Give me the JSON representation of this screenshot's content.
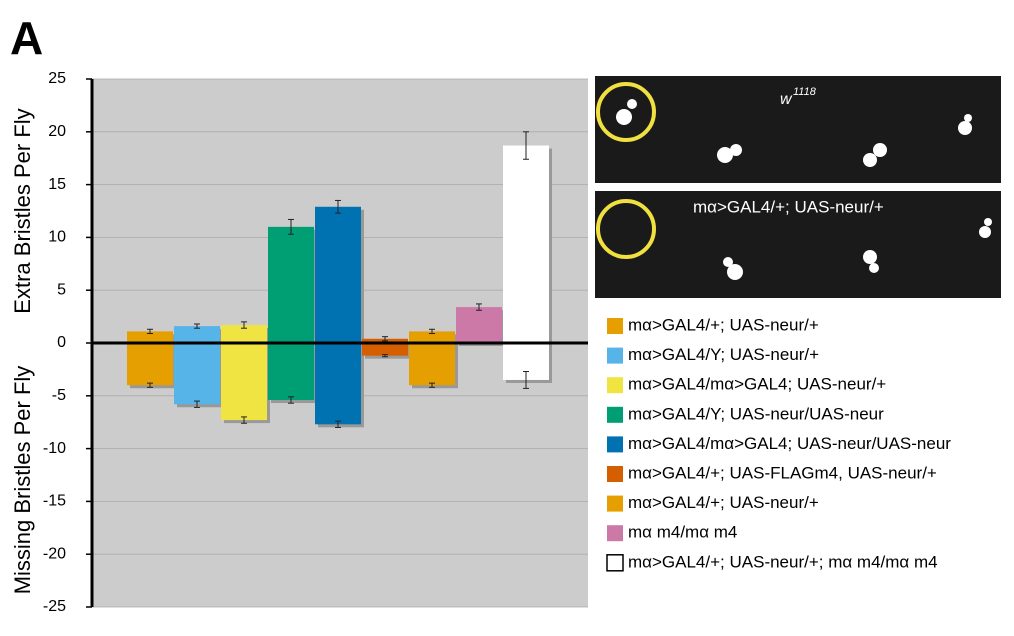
{
  "chart_data": {
    "type": "bar",
    "panel_label": "A",
    "ylabels": [
      "Extra Bristles Per Fly",
      "Missing Bristles Per Fly"
    ],
    "categories": [
      "mα>GAL4/+; UAS-neur/+",
      "mα>GAL4/Y; UAS-neur/+",
      "mα>GAL4/mα>GAL4; UAS-neur/+",
      "mα>GAL4/Y; UAS-neur/UAS-neur",
      "mα>GAL4/mα>GAL4; UAS-neur/UAS-neur",
      "mα>GAL4/+; UAS-FLAGm4, UAS-neur/+",
      "mα>GAL4/+; UAS-neur/+",
      "mα m4/mα m4",
      "mα>GAL4/+; UAS-neur/+; mα m4/mα m4"
    ],
    "colors": [
      "#e69f00",
      "#56b4e9",
      "#f0e442",
      "#009e73",
      "#0072b2",
      "#d55e00",
      "#e69f00",
      "#cc79a7",
      "#ffffff"
    ],
    "series": [
      {
        "values": [
          1.1,
          1.6,
          1.7,
          11.0,
          12.9,
          0.4,
          1.1,
          3.4,
          18.7
        ],
        "errors": [
          0.2,
          0.2,
          0.3,
          0.7,
          0.6,
          0.2,
          0.2,
          0.3,
          1.3
        ]
      },
      {
        "values": [
          -4.0,
          -5.8,
          -7.3,
          -5.4,
          -7.7,
          -1.2,
          -4.0,
          0,
          -3.5
        ],
        "errors": [
          0.2,
          0.3,
          0.3,
          0.3,
          0.3,
          0.1,
          0.2,
          0,
          0.8
        ]
      }
    ],
    "ylim": [
      -25,
      25
    ],
    "yticks": [
      -25,
      -20,
      -15,
      -10,
      -5,
      0,
      5,
      10,
      15,
      20,
      25
    ],
    "grid": true,
    "images": [
      {
        "text": "w",
        "sup": "1118"
      },
      {
        "text": "mα>GAL4/+; UAS-neur/+"
      }
    ]
  }
}
